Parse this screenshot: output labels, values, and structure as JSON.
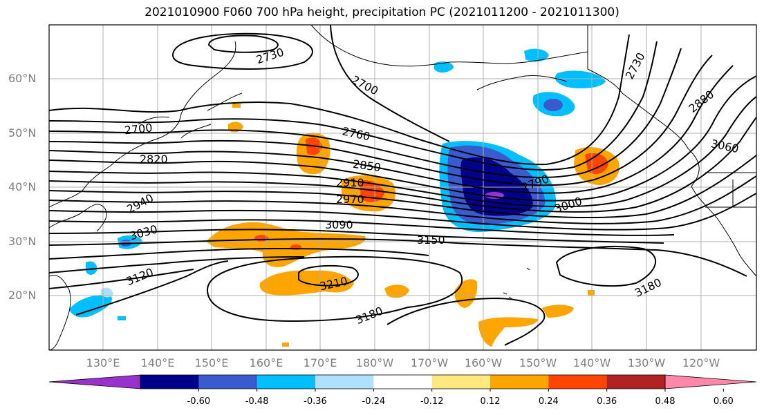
{
  "title": "2021010900 F060 700 hPa height, precipitation PC (2021011200 - 2021011300)",
  "lat_labels": [
    "60°N",
    "50°N",
    "40°N",
    "30°N",
    "20°N"
  ],
  "lon_labels": [
    "130°E",
    "140°E",
    "150°E",
    "160°E",
    "170°E",
    "180°W",
    "170°W",
    "160°W",
    "150°W",
    "140°W",
    "130°W",
    "120°W"
  ],
  "contour_labels": [
    "2730",
    "2700",
    "2760",
    "2700",
    "2820",
    "2850",
    "2910",
    "2970",
    "2940",
    "3030",
    "3090",
    "3150",
    "3120",
    "3210",
    "3180",
    "3180",
    "2790",
    "3000",
    "2730",
    "2880",
    "3060"
  ],
  "colorbar": {
    "tick_labels": [
      "-0.60",
      "-0.48",
      "-0.36",
      "-0.24",
      "-0.12",
      "0.12",
      "0.24",
      "0.36",
      "0.48",
      "0.60"
    ],
    "colors": [
      "#9932CC",
      "#00008B",
      "#3A5BCD",
      "#00BFFF",
      "#B0E0FF",
      "#FFFFFF",
      "#FFE97F",
      "#FFA500",
      "#FF4500",
      "#B22222",
      "#FF88AA"
    ]
  }
}
